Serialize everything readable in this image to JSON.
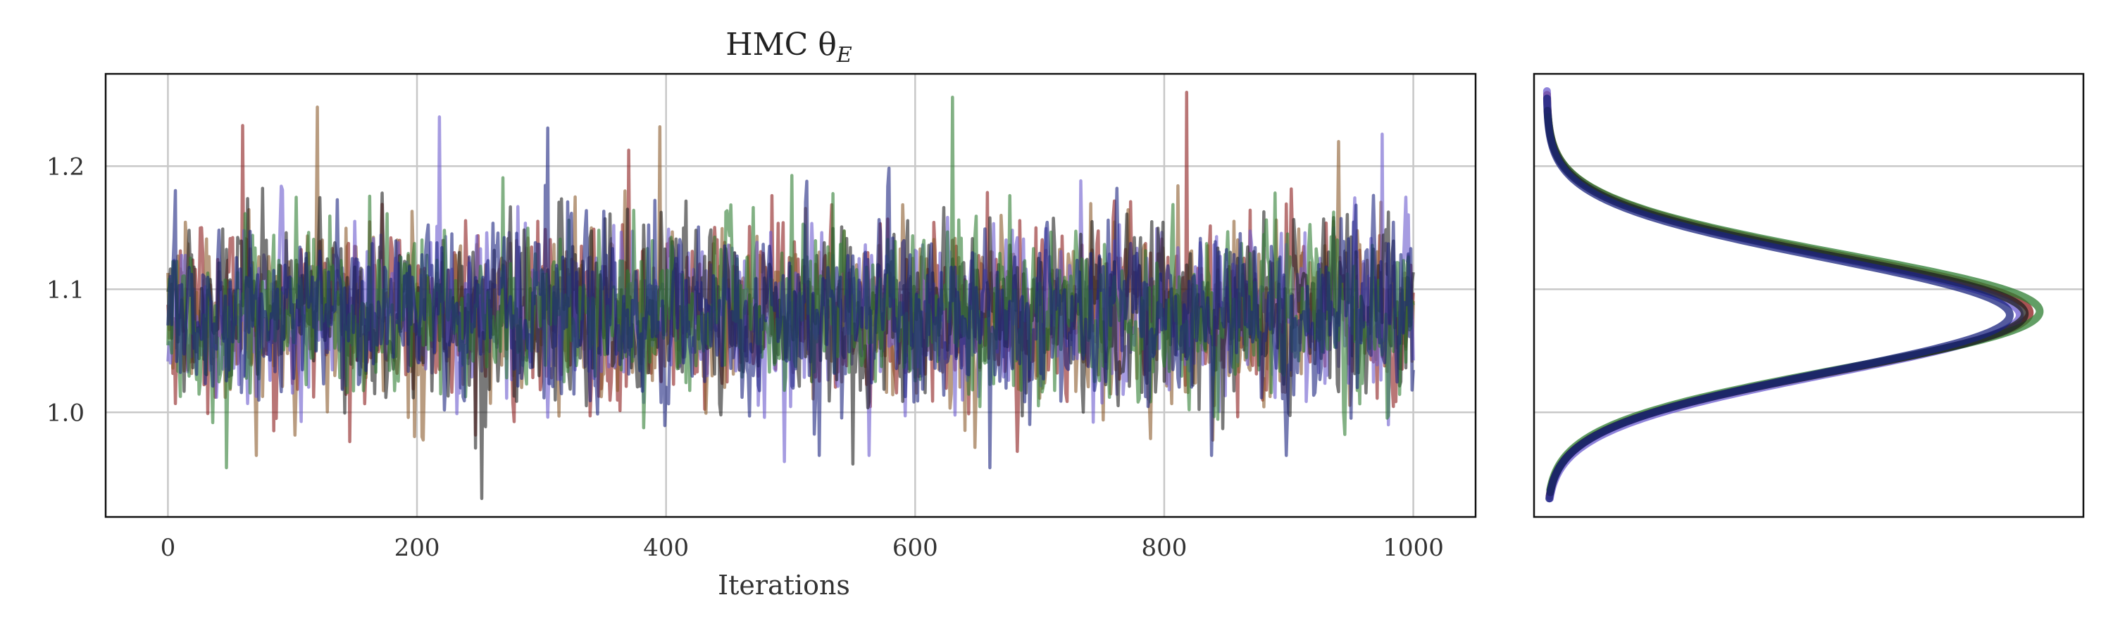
{
  "chart_data": [
    {
      "type": "line",
      "panel": "trace",
      "title": "HMC θ",
      "title_subscript": "E",
      "xlabel": "Iterations",
      "ylabel": "",
      "xlim": [
        -50,
        1050
      ],
      "ylim": [
        0.915,
        1.275
      ],
      "x_ticks": [
        0,
        200,
        400,
        600,
        800,
        1000
      ],
      "x_tick_labels": [
        "0",
        "200",
        "400",
        "600",
        "800",
        "1000"
      ],
      "y_ticks": [
        1.0,
        1.1,
        1.2
      ],
      "y_tick_labels": [
        "1.0",
        "1.1",
        "1.2"
      ],
      "grid": true,
      "n_iterations": 1000,
      "series_mean": 1.08,
      "series_sd": 0.045,
      "series": [
        {
          "color": "#8b1a1a",
          "opacity": 0.6
        },
        {
          "color": "#8b5a2b",
          "opacity": 0.6
        },
        {
          "color": "#6a5acd",
          "opacity": 0.6
        },
        {
          "color": "#1f1f1f",
          "opacity": 0.6
        },
        {
          "color": "#2e7d32",
          "opacity": 0.6
        },
        {
          "color": "#1a237e",
          "opacity": 0.6
        }
      ],
      "peaks": [
        {
          "x": 60,
          "y": 1.233
        },
        {
          "x": 120,
          "y": 1.248
        },
        {
          "x": 218,
          "y": 1.24
        },
        {
          "x": 252,
          "y": 0.93
        },
        {
          "x": 47,
          "y": 0.955
        },
        {
          "x": 305,
          "y": 1.231
        },
        {
          "x": 370,
          "y": 1.213
        },
        {
          "x": 395,
          "y": 1.232
        },
        {
          "x": 495,
          "y": 0.96
        },
        {
          "x": 550,
          "y": 0.958
        },
        {
          "x": 630,
          "y": 1.256
        },
        {
          "x": 660,
          "y": 0.955
        },
        {
          "x": 818,
          "y": 1.26
        },
        {
          "x": 940,
          "y": 1.22
        },
        {
          "x": 975,
          "y": 1.226
        }
      ]
    },
    {
      "type": "area",
      "panel": "density",
      "orientation": "horizontal",
      "ylim": [
        0.915,
        1.275
      ],
      "y_ticks": [
        1.0,
        1.1,
        1.2
      ],
      "grid": true,
      "series": [
        {
          "color": "#8b1a1a",
          "mean": 1.081,
          "sd": 0.0465,
          "y_min": 0.932,
          "y_max": 1.258,
          "peak": 0.97
        },
        {
          "color": "#6a5acd",
          "mean": 1.079,
          "sd": 0.047,
          "y_min": 0.93,
          "y_max": 1.261,
          "peak": 0.95
        },
        {
          "color": "#2e7d32",
          "mean": 1.082,
          "sd": 0.046,
          "y_min": 0.937,
          "y_max": 1.24,
          "peak": 0.99
        },
        {
          "color": "#1f1f1f",
          "mean": 1.08,
          "sd": 0.0463,
          "y_min": 0.935,
          "y_max": 1.245,
          "peak": 0.96
        },
        {
          "color": "#1a237e",
          "mean": 1.079,
          "sd": 0.0462,
          "y_min": 0.93,
          "y_max": 1.255,
          "peak": 0.93
        }
      ]
    }
  ]
}
